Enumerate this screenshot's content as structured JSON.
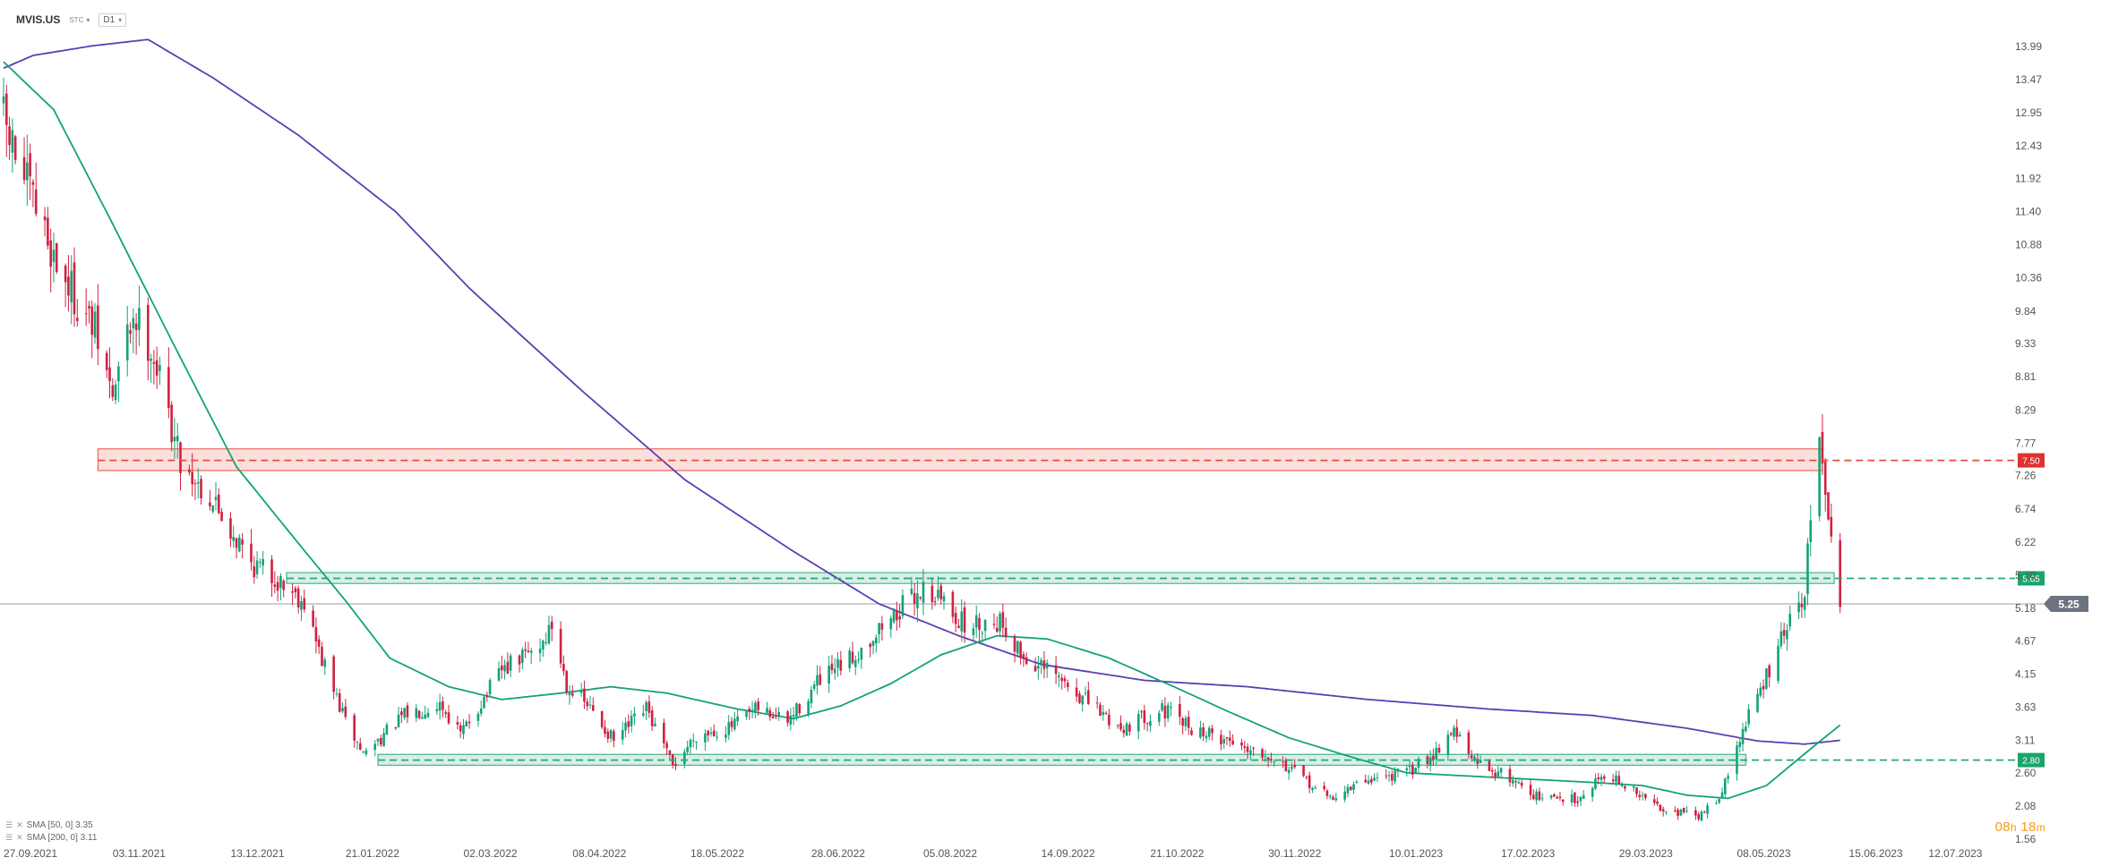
{
  "header": {
    "symbol": "MVIS.US",
    "subtitle": "STC",
    "timeframe": "D1"
  },
  "indicators": [
    {
      "label": "SMA [50, 0] 3.35",
      "color": "#12a27a"
    },
    {
      "label": "SMA [200, 0] 3.11",
      "color": "#5b3fb3"
    }
  ],
  "timer": {
    "hours": "08",
    "h": "h",
    "minutes": "18",
    "m": "m"
  },
  "icons": {
    "indicator_menu": "list-icon",
    "indicator_close": "close-icon",
    "chevron": "chevron-down-icon"
  },
  "colors": {
    "bull": "#12a27a",
    "bear": "#d0213f",
    "sma50": "#12a27a",
    "sma200": "#5b3fb3",
    "resistance": "#e74c3c",
    "support": "#26a87a",
    "current": "#6d7480",
    "timer": "#f39c12"
  },
  "chart_data": {
    "type": "candlestick",
    "y_ticks": [
      "13.99",
      "13.47",
      "12.95",
      "12.43",
      "11.92",
      "11.40",
      "10.88",
      "10.36",
      "9.84",
      "9.33",
      "8.81",
      "8.29",
      "7.77",
      "7.26",
      "6.74",
      "6.22",
      "5.70",
      "5.18",
      "4.67",
      "4.15",
      "3.63",
      "3.11",
      "2.60",
      "2.08",
      "1.56"
    ],
    "x_ticks": [
      "27.09.2021",
      "03.11.2021",
      "13.12.2021",
      "21.01.2022",
      "02.03.2022",
      "08.04.2022",
      "18.05.2022",
      "28.06.2022",
      "05.08.2022",
      "14.09.2022",
      "21.10.2022",
      "30.11.2022",
      "10.01.2023",
      "17.02.2023",
      "29.03.2023",
      "08.05.2023",
      "15.06.2023",
      "12.07.2023"
    ],
    "ylim": [
      1.56,
      13.99
    ],
    "xlim": [
      "2021-09-27",
      "2023-07-14"
    ],
    "levels": [
      {
        "value": 7.5,
        "label": "7.50",
        "kind": "resistance",
        "zone": [
          7.34,
          7.68
        ],
        "from": "2021-10-29",
        "to": "2023-06-06"
      },
      {
        "value": 5.65,
        "label": "5.65",
        "kind": "support",
        "zone": [
          5.57,
          5.74
        ],
        "from": "2022-01-01",
        "to": "2023-06-10"
      },
      {
        "value": 2.8,
        "label": "2.80",
        "kind": "support",
        "zone": [
          2.72,
          2.89
        ],
        "from": "2022-02-01",
        "to": "2023-05-11"
      }
    ],
    "current_price": {
      "value": 5.25,
      "label": "5.25"
    },
    "close_anchors": [
      [
        "2021-09-27",
        12.8
      ],
      [
        "2021-10-04",
        11.9
      ],
      [
        "2021-10-15",
        10.6
      ],
      [
        "2021-10-28",
        9.5
      ],
      [
        "2021-11-03",
        8.5
      ],
      [
        "2021-11-10",
        9.8
      ],
      [
        "2021-11-16",
        9.3
      ],
      [
        "2021-11-26",
        7.5
      ],
      [
        "2021-12-08",
        6.8
      ],
      [
        "2021-12-20",
        5.9
      ],
      [
        "2021-12-30",
        5.6
      ],
      [
        "2022-01-07",
        5.3
      ],
      [
        "2022-01-12",
        4.5
      ],
      [
        "2022-01-21",
        3.4
      ],
      [
        "2022-01-27",
        2.9
      ],
      [
        "2022-02-10",
        3.5
      ],
      [
        "2022-02-22",
        3.7
      ],
      [
        "2022-03-01",
        3.2
      ],
      [
        "2022-03-15",
        4.2
      ],
      [
        "2022-03-28",
        4.6
      ],
      [
        "2022-04-01",
        4.9
      ],
      [
        "2022-04-06",
        4.0
      ],
      [
        "2022-04-14",
        3.6
      ],
      [
        "2022-04-22",
        3.1
      ],
      [
        "2022-05-03",
        3.6
      ],
      [
        "2022-05-12",
        2.7
      ],
      [
        "2022-05-20",
        3.2
      ],
      [
        "2022-05-31",
        3.3
      ],
      [
        "2022-06-10",
        3.6
      ],
      [
        "2022-06-20",
        3.4
      ],
      [
        "2022-06-30",
        4.0
      ],
      [
        "2022-07-12",
        4.4
      ],
      [
        "2022-07-22",
        4.9
      ],
      [
        "2022-08-05",
        5.5
      ],
      [
        "2022-08-12",
        5.3
      ],
      [
        "2022-08-19",
        4.9
      ],
      [
        "2022-08-31",
        5.0
      ],
      [
        "2022-09-08",
        4.4
      ],
      [
        "2022-09-19",
        4.1
      ],
      [
        "2022-09-30",
        3.7
      ],
      [
        "2022-10-11",
        3.3
      ],
      [
        "2022-10-25",
        3.6
      ],
      [
        "2022-11-04",
        3.3
      ],
      [
        "2022-11-17",
        3.1
      ],
      [
        "2022-11-30",
        2.9
      ],
      [
        "2022-12-12",
        2.5
      ],
      [
        "2022-12-21",
        2.2
      ],
      [
        "2023-01-03",
        2.5
      ],
      [
        "2023-01-16",
        2.6
      ],
      [
        "2023-01-25",
        2.9
      ],
      [
        "2023-02-01",
        3.3
      ],
      [
        "2023-02-07",
        2.8
      ],
      [
        "2023-02-21",
        2.5
      ],
      [
        "2023-03-02",
        2.2
      ],
      [
        "2023-03-15",
        2.2
      ],
      [
        "2023-03-24",
        2.6
      ],
      [
        "2023-04-10",
        2.1
      ],
      [
        "2023-04-25",
        1.9
      ],
      [
        "2023-05-03",
        2.3
      ],
      [
        "2023-05-11",
        3.4
      ],
      [
        "2023-05-18",
        4.1
      ],
      [
        "2023-05-25",
        4.9
      ],
      [
        "2023-05-31",
        5.3
      ],
      [
        "2023-06-02",
        6.8
      ],
      [
        "2023-06-05",
        7.6
      ],
      [
        "2023-06-07",
        7.1
      ],
      [
        "2023-06-09",
        6.5
      ],
      [
        "2023-06-12",
        5.3
      ]
    ],
    "sma50_points": [
      [
        "2021-09-27",
        13.75
      ],
      [
        "2021-10-14",
        13.0
      ],
      [
        "2021-11-02",
        11.3
      ],
      [
        "2021-11-25",
        9.2
      ],
      [
        "2021-12-15",
        7.4
      ],
      [
        "2022-01-05",
        6.2
      ],
      [
        "2022-01-21",
        5.3
      ],
      [
        "2022-02-05",
        4.4
      ],
      [
        "2022-02-25",
        3.95
      ],
      [
        "2022-03-15",
        3.75
      ],
      [
        "2022-04-04",
        3.85
      ],
      [
        "2022-04-21",
        3.95
      ],
      [
        "2022-05-10",
        3.85
      ],
      [
        "2022-06-03",
        3.6
      ],
      [
        "2022-06-22",
        3.45
      ],
      [
        "2022-07-08",
        3.65
      ],
      [
        "2022-07-25",
        4.0
      ],
      [
        "2022-08-11",
        4.45
      ],
      [
        "2022-08-30",
        4.75
      ],
      [
        "2022-09-16",
        4.7
      ],
      [
        "2022-10-07",
        4.4
      ],
      [
        "2022-10-29",
        3.95
      ],
      [
        "2022-11-17",
        3.55
      ],
      [
        "2022-12-07",
        3.15
      ],
      [
        "2022-12-28",
        2.85
      ],
      [
        "2023-01-16",
        2.6
      ],
      [
        "2023-02-06",
        2.55
      ],
      [
        "2023-02-27",
        2.5
      ],
      [
        "2023-03-20",
        2.45
      ],
      [
        "2023-04-06",
        2.4
      ],
      [
        "2023-04-21",
        2.25
      ],
      [
        "2023-05-05",
        2.2
      ],
      [
        "2023-05-18",
        2.4
      ],
      [
        "2023-05-31",
        2.9
      ],
      [
        "2023-06-12",
        3.35
      ]
    ],
    "sma200_points": [
      [
        "2021-09-27",
        13.65
      ],
      [
        "2021-10-07",
        13.85
      ],
      [
        "2021-10-27",
        14.0
      ],
      [
        "2021-11-15",
        14.1
      ],
      [
        "2021-12-07",
        13.5
      ],
      [
        "2022-01-05",
        12.6
      ],
      [
        "2022-02-07",
        11.4
      ],
      [
        "2022-03-04",
        10.2
      ],
      [
        "2022-04-11",
        8.6
      ],
      [
        "2022-05-16",
        7.2
      ],
      [
        "2022-06-21",
        6.1
      ],
      [
        "2022-07-21",
        5.25
      ],
      [
        "2022-08-17",
        4.75
      ],
      [
        "2022-09-14",
        4.3
      ],
      [
        "2022-10-19",
        4.05
      ],
      [
        "2022-11-23",
        3.95
      ],
      [
        "2023-01-03",
        3.75
      ],
      [
        "2023-02-13",
        3.6
      ],
      [
        "2023-03-20",
        3.5
      ],
      [
        "2023-04-21",
        3.3
      ],
      [
        "2023-05-15",
        3.1
      ],
      [
        "2023-05-31",
        3.05
      ],
      [
        "2023-06-12",
        3.11
      ]
    ]
  }
}
